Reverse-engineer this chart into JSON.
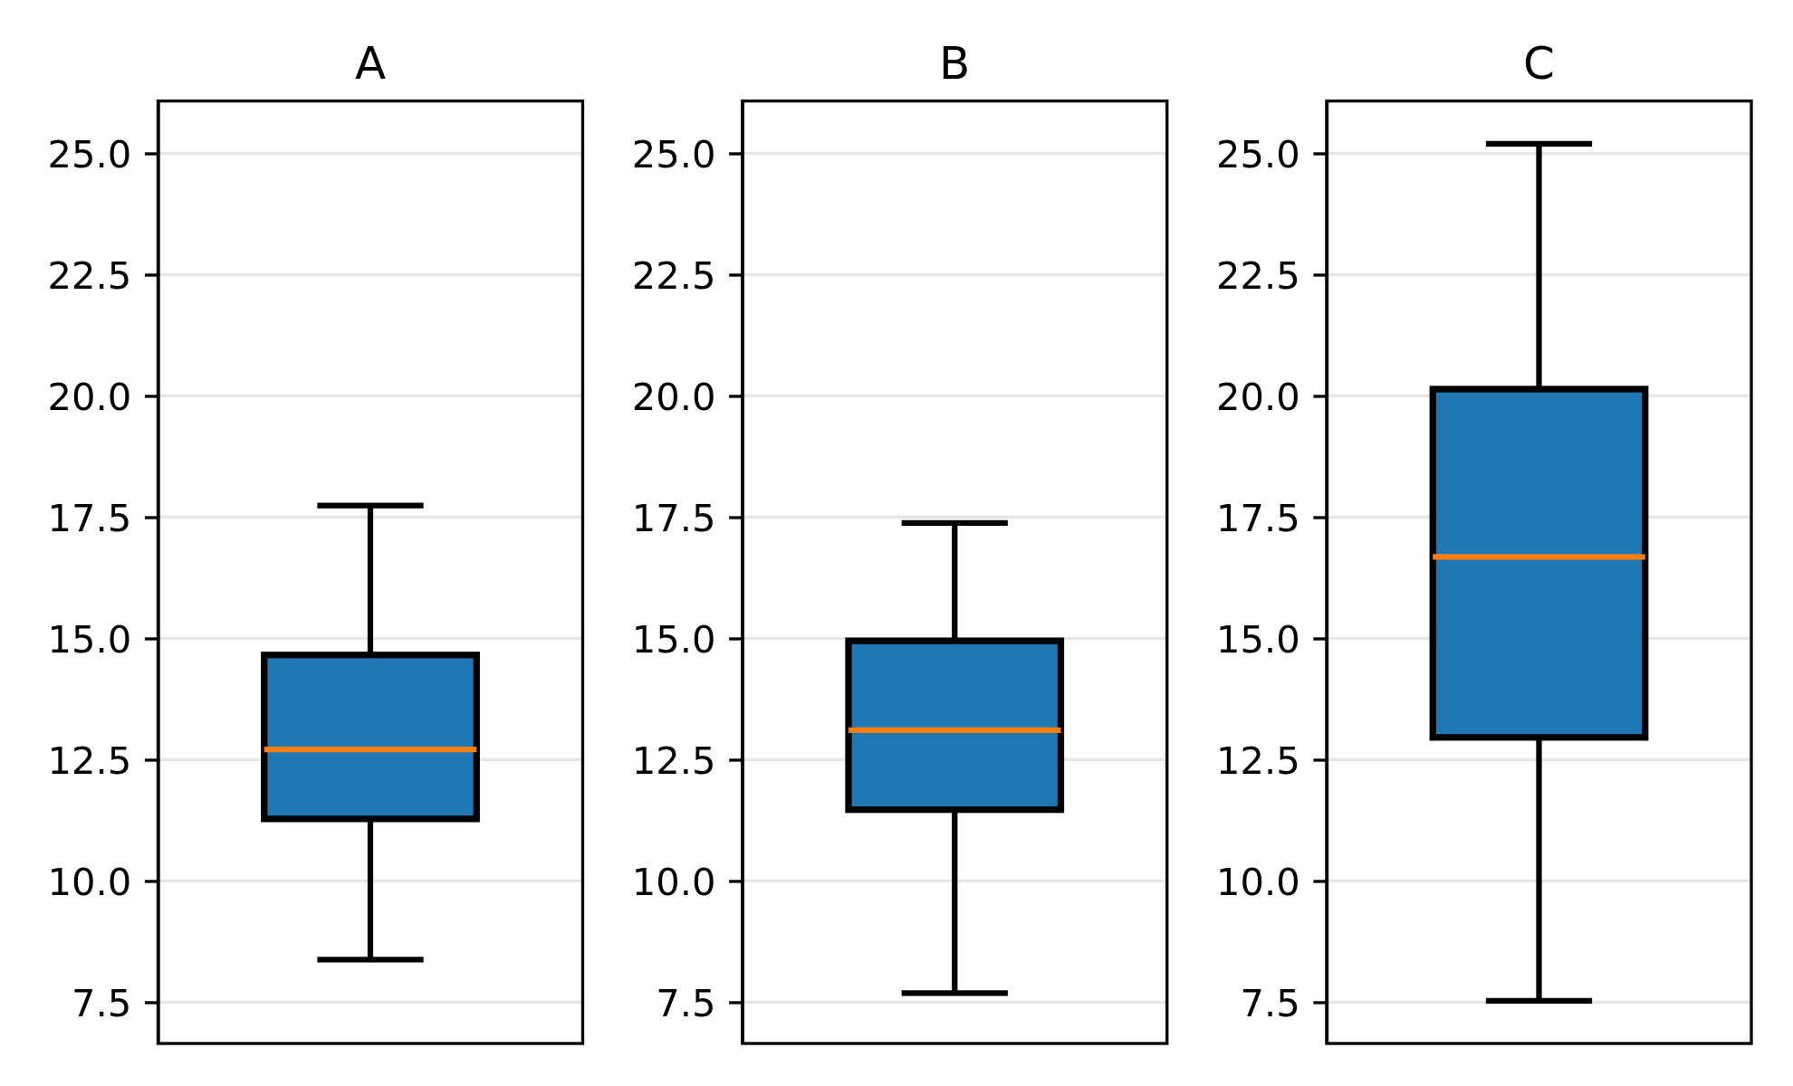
{
  "chart_data": [
    {
      "type": "box",
      "title": "A",
      "categories": [
        null
      ],
      "color": "#1f77b4",
      "boxes": [
        {
          "low": 8.38,
          "q1": 11.28,
          "median": 12.71,
          "q3": 14.66,
          "high": 17.74
        }
      ],
      "ylim": [
        6.65,
        26.08
      ],
      "yticks": [
        7.5,
        {
          "value": 10,
          "label": "10.0"
        },
        12.5,
        {
          "value": 15,
          "label": "15.0"
        },
        17.5,
        {
          "value": 20,
          "label": "20.0"
        },
        22.5,
        {
          "value": 25,
          "label": "25.0"
        }
      ],
      "grid": "y",
      "tick_labels": "y"
    },
    {
      "type": "box",
      "title": "B",
      "categories": [
        null
      ],
      "color": "#1f77b4",
      "boxes": [
        {
          "low": 7.69,
          "q1": 11.47,
          "median": 13.11,
          "q3": 14.95,
          "high": 17.38
        }
      ],
      "ylim": [
        6.65,
        26.08
      ],
      "yticks": [
        7.5,
        {
          "value": 10,
          "label": "10.0"
        },
        12.5,
        {
          "value": 15,
          "label": "15.0"
        },
        17.5,
        {
          "value": 20,
          "label": "20.0"
        },
        22.5,
        {
          "value": 25,
          "label": "25.0"
        }
      ],
      "grid": "y",
      "tick_labels": "y"
    },
    {
      "type": "box",
      "title": "C",
      "categories": [
        null
      ],
      "color": "#1f77b4",
      "boxes": [
        {
          "low": 7.53,
          "q1": 12.96,
          "median": 16.68,
          "q3": 20.14,
          "high": 25.2
        }
      ],
      "ylim": [
        6.65,
        26.08
      ],
      "yticks": [
        7.5,
        {
          "value": 10,
          "label": "10.0"
        },
        12.5,
        {
          "value": 15,
          "label": "15.0"
        },
        17.5,
        {
          "value": 20,
          "label": "20.0"
        },
        22.5,
        {
          "value": 25,
          "label": "25.0"
        }
      ],
      "grid": "y",
      "tick_labels": "y"
    }
  ]
}
